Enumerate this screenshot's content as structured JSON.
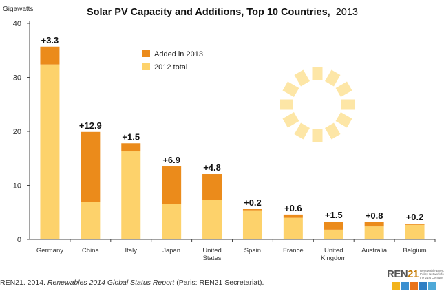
{
  "chart_data": {
    "type": "bar",
    "stacked": true,
    "title": "Solar PV Capacity and Additions, Top 10 Countries, 2013",
    "title_main": "Solar PV Capacity and Additions, Top 10 Countries,",
    "title_year": "2013",
    "ylabel": "Gigawatts",
    "ylim": [
      0,
      40
    ],
    "yticks": [
      "0",
      "10",
      "20",
      "30",
      "40"
    ],
    "grid": false,
    "legend_position": "top-center",
    "categories": [
      [
        "Germany"
      ],
      [
        "China"
      ],
      [
        "Italy"
      ],
      [
        "Japan"
      ],
      [
        "United",
        "States"
      ],
      [
        "Spain"
      ],
      [
        "France"
      ],
      [
        "United",
        "Kingdom"
      ],
      [
        "Australia"
      ],
      [
        "Belgium"
      ]
    ],
    "series": [
      {
        "name": "2012 total",
        "color": "#fdd26b",
        "values": [
          32.4,
          7.0,
          16.3,
          6.6,
          7.3,
          5.4,
          4.0,
          1.8,
          2.4,
          2.7
        ]
      },
      {
        "name": "Added in 2013",
        "color": "#eb8b1b",
        "values": [
          3.3,
          12.9,
          1.5,
          6.9,
          4.8,
          0.2,
          0.6,
          1.5,
          0.8,
          0.2
        ]
      }
    ],
    "bar_labels": [
      "+3.3",
      "+12.9",
      "+1.5",
      "+6.9",
      "+4.8",
      "+0.2",
      "+0.6",
      "+1.5",
      "+0.8",
      "+0.2"
    ],
    "legend": [
      {
        "label": "Added in 2013",
        "color": "#eb8b1b"
      },
      {
        "label": "2012 total",
        "color": "#fdd26b"
      }
    ]
  },
  "source": {
    "prefix": "REN21. 2014. ",
    "title": "Renewables 2014 Global Status Report",
    "suffix": " (Paris: REN21 Secretariat)."
  },
  "logo": {
    "word": "REN",
    "number": "21",
    "tagline": "Renewable Energy Policy Network for the 21st Century",
    "icon_colors": [
      "#f2b31c",
      "#3a8fd0",
      "#e8731a",
      "#2f7fc4",
      "#4fa9d8"
    ]
  }
}
